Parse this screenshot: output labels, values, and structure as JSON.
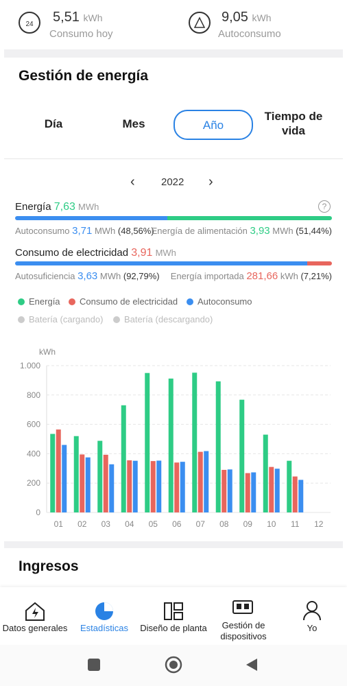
{
  "top_stats": [
    {
      "value": "5,51",
      "unit": "kWh",
      "label": "Consumo hoy"
    },
    {
      "value": "9,05",
      "unit": "kWh",
      "label": "Autoconsumo"
    }
  ],
  "section_title": "Gestión de energía",
  "tabs": [
    "Día",
    "Mes",
    "Año",
    "Tiempo de vida"
  ],
  "year": "2022",
  "energy": {
    "label": "Energía",
    "value": "7,63",
    "unit": "MWh",
    "parts": [
      {
        "label": "Autoconsumo",
        "value": "3,71",
        "unit": "MWh",
        "share": "(48,56%)"
      },
      {
        "label": "Energía de alimentación",
        "value": "3,93",
        "unit": "MWh",
        "share": "(51,44%)"
      }
    ]
  },
  "consumption": {
    "label": "Consumo de electricidad",
    "value": "3,91",
    "unit": "MWh",
    "parts": [
      {
        "label": "Autosuficiencia",
        "value": "3,63",
        "unit": "MWh",
        "share": "(92,79%)"
      },
      {
        "label": "Energía importada",
        "value": "281,66",
        "unit": "kWh",
        "share": "(7,21%)"
      }
    ]
  },
  "chart": {
    "type": "bar",
    "y_label": "kWh",
    "categories": [
      "01",
      "02",
      "03",
      "04",
      "05",
      "06",
      "07",
      "08",
      "09",
      "10",
      "11",
      "12"
    ],
    "series": [
      {
        "name": "Energía",
        "color": "#2ecc85",
        "values": [
          535,
          520,
          488,
          730,
          950,
          912,
          952,
          893,
          768,
          530,
          352,
          null
        ]
      },
      {
        "name": "Consumo de electricidad",
        "color": "#e8665d",
        "values": [
          565,
          395,
          393,
          355,
          350,
          340,
          413,
          290,
          268,
          310,
          245,
          null
        ]
      },
      {
        "name": "Autoconsumo",
        "color": "#3b8ef0",
        "values": [
          460,
          375,
          328,
          352,
          353,
          345,
          418,
          293,
          273,
          298,
          222,
          null
        ]
      }
    ],
    "inactive_legend": [
      "Batería (cargando)",
      "Batería (descargando)"
    ],
    "ylim": [
      0,
      1000
    ],
    "yticks": [
      0,
      200,
      400,
      600,
      800,
      {
        "value": 1000,
        "label": "1.000"
      }
    ],
    "grid": true
  },
  "section2_title": "Ingresos",
  "nav": [
    "Datos generales",
    "Estadísticas",
    "Diseño de planta",
    "Gestión de dispositivos",
    "Yo"
  ]
}
